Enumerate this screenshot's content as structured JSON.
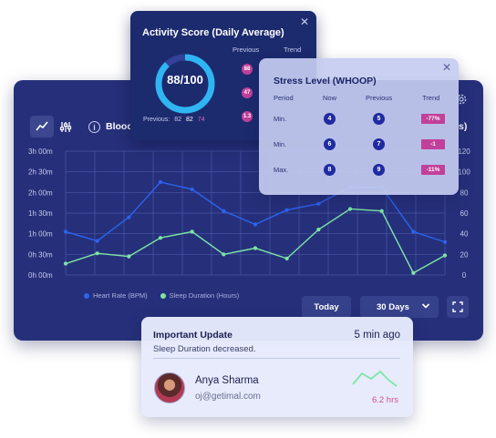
{
  "dashboard": {
    "chart_title": "Blood",
    "right_axis_cut": "s)",
    "legend": [
      {
        "label": "Heart Rate (BPM)",
        "color": "#2a64f0"
      },
      {
        "label": "Sleep Duration (Hours)",
        "color": "#7de6a4"
      }
    ],
    "today_label": "Today",
    "range_label": "30 Days"
  },
  "chart_data": {
    "type": "line",
    "left_ticks": [
      "3h 00m",
      "2h 30m",
      "2h 00m",
      "1h 30m",
      "1h 00m",
      "0h 30m",
      "0h 00m"
    ],
    "right_ticks": [
      "120",
      "100",
      "80",
      "60",
      "40",
      "20",
      "0"
    ],
    "ylim": [
      0,
      120
    ],
    "series": [
      {
        "name": "Heart Rate (BPM)",
        "color": "#2a64f0",
        "values": [
          42,
          33,
          56,
          90,
          83,
          62,
          49,
          63,
          69,
          85,
          85,
          42,
          32
        ]
      },
      {
        "name": "Sleep Duration (Hours)",
        "color": "#7de6a4",
        "values": [
          11,
          21,
          18,
          36,
          42,
          20,
          26,
          16,
          44,
          64,
          62,
          2,
          19
        ]
      }
    ],
    "grid": true
  },
  "activity": {
    "title": "Activity Score (Daily Average)",
    "col_previous": "Previous",
    "col_trend": "Trend",
    "score_text": "88/100",
    "score_fraction": 0.88,
    "previous_label": "Previous:",
    "previous_a": "82",
    "previous_b": "82",
    "previous_c": "74",
    "badges": [
      "88",
      "47",
      "1.3"
    ]
  },
  "stress": {
    "title": "Stress Level (WHOOP)",
    "headers": {
      "period": "Period",
      "now": "Now",
      "previous": "Previous",
      "trend": "Trend"
    },
    "rows": [
      {
        "period": "Min.",
        "now": "4",
        "previous": "5",
        "trend": "-77%"
      },
      {
        "period": "Min.",
        "now": "6",
        "previous": "7",
        "trend": "-1"
      },
      {
        "period": "Max.",
        "now": "8",
        "previous": "9",
        "trend": "-11%"
      }
    ]
  },
  "update": {
    "title": "Important Update",
    "time": "5 min ago",
    "message": "Sleep Duration decreased.",
    "name": "Anya Sharma",
    "email": "oj@getimal.com",
    "value": "6.2 hrs"
  }
}
